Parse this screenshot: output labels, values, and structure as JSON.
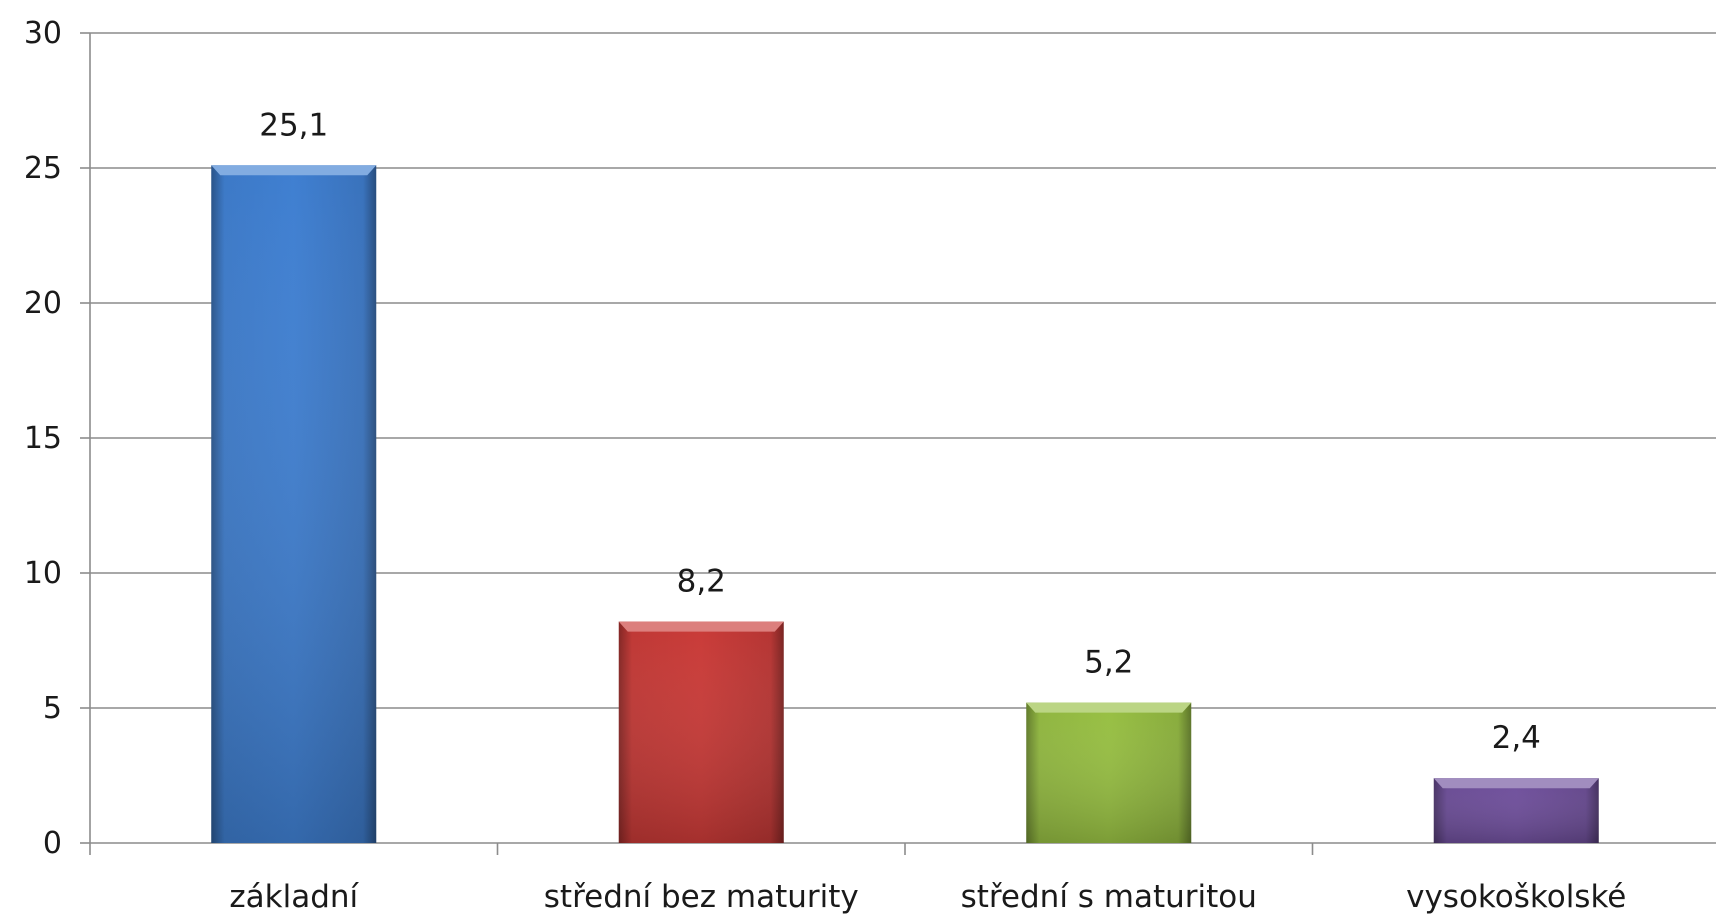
{
  "chart_data": {
    "type": "bar",
    "categories": [
      "základní",
      "střední bez maturity",
      "střední s maturitou",
      "vysokoškolské"
    ],
    "values": [
      25.1,
      8.2,
      5.2,
      2.4
    ],
    "data_labels": [
      "25,1",
      "8,2",
      "5,2",
      "2,4"
    ],
    "colors": [
      "#3f7fd1",
      "#c93a37",
      "#97bf42",
      "#6f4f9c"
    ],
    "ylim": [
      0,
      30
    ],
    "yticks": [
      0,
      5,
      10,
      15,
      20,
      25,
      30
    ],
    "grid": true,
    "legend": false,
    "title": "",
    "xlabel": "",
    "ylabel": ""
  }
}
